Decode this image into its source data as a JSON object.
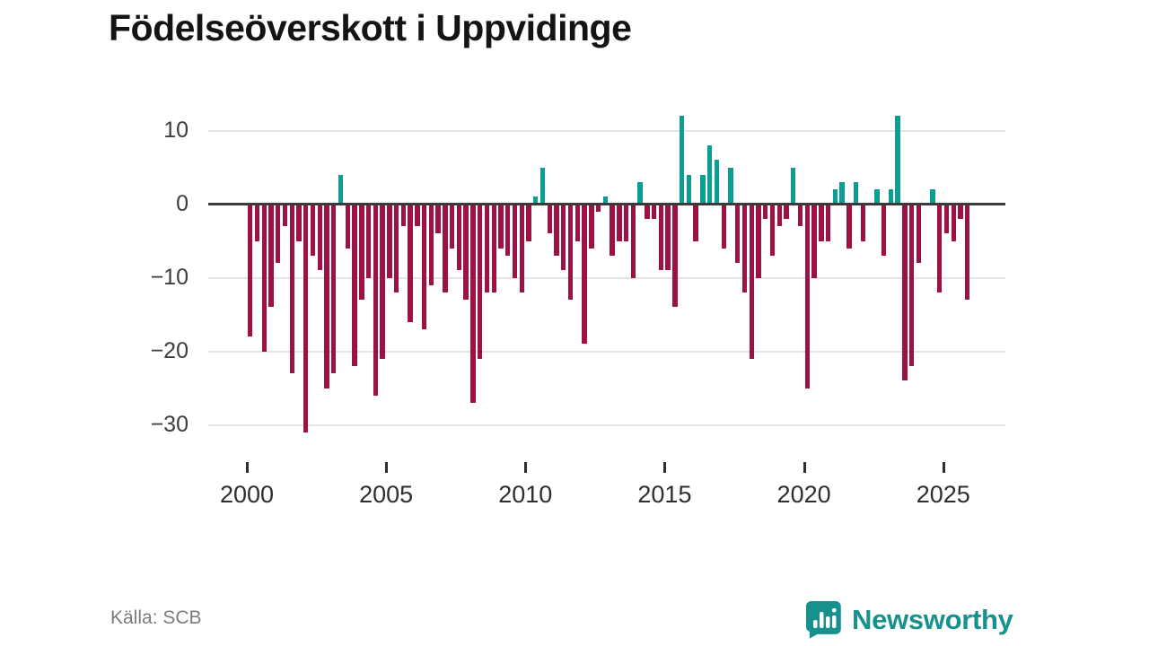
{
  "title": "Födelseöverskott i Uppvidinge",
  "source": "Källa: SCB",
  "branding": {
    "name": "Newsworthy",
    "color": "#17918d"
  },
  "chart_data": {
    "type": "bar",
    "title": "Födelseöverskott i Uppvidinge",
    "xlabel": "",
    "ylabel": "",
    "frequency": "quarterly",
    "period_start": "2000 Q1",
    "period_end": "2025 Q4",
    "ylim": [
      -33,
      13
    ],
    "grid": "horizontal",
    "y_gridlines": [
      10,
      0,
      -10,
      -20,
      -30
    ],
    "y_tick_labels": [
      "10",
      "0",
      "−10",
      "−20",
      "−30"
    ],
    "x_ticks": [
      2000,
      2005,
      2010,
      2015,
      2020,
      2025
    ],
    "x_tick_labels": [
      "2000",
      "2005",
      "2010",
      "2015",
      "2020",
      "2025"
    ],
    "positive_color": "#0a9e94",
    "negative_color": "#9e1145",
    "values": [
      -18,
      -5,
      -20,
      -14,
      -8,
      -3,
      -23,
      -5,
      -31,
      -7,
      -9,
      -25,
      -23,
      4,
      -6,
      -22,
      -13,
      -10,
      -26,
      -21,
      -10,
      -12,
      -3,
      -16,
      -3,
      -17,
      -11,
      -4,
      -12,
      -6,
      -9,
      -13,
      -27,
      -21,
      -12,
      -12,
      -6,
      -7,
      -10,
      -12,
      -5,
      1,
      5,
      -4,
      -7,
      -9,
      -13,
      -5,
      -19,
      -6,
      -1,
      1,
      -7,
      -5,
      -5,
      -10,
      3,
      -2,
      -2,
      -9,
      -9,
      -14,
      12,
      4,
      -5,
      4,
      8,
      6,
      -6,
      5,
      -8,
      -12,
      -21,
      -10,
      -2,
      -7,
      -3,
      -2,
      5,
      -3,
      -25,
      -10,
      -5,
      -5,
      2,
      3,
      -6,
      3,
      -5,
      0,
      2,
      -7,
      2,
      12,
      -24,
      -22,
      -8,
      0,
      2,
      -12,
      -4,
      -5,
      -2,
      -13
    ]
  }
}
